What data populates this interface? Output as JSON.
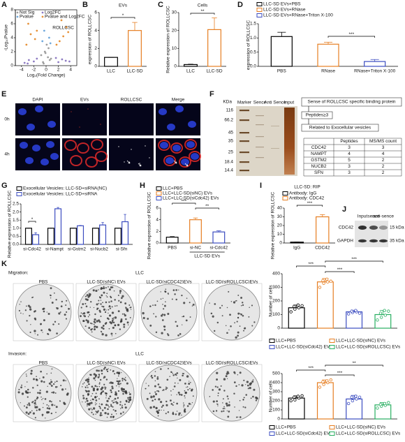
{
  "chart_data": [
    {
      "type": "scatter",
      "label": "A",
      "xlabel": "Log₂(Fold Change)",
      "ylabel": "-Log₁₀Pvalue",
      "annotation": "ROLLCSC",
      "xlim": [
        -5,
        5
      ],
      "xticks": [
        -4,
        -2,
        0,
        2,
        4
      ],
      "ylim": [
        0,
        8
      ],
      "yticks": [
        0,
        2,
        4,
        6,
        8
      ],
      "series": [
        {
          "name": "Not Sig",
          "color": "#9e9e9e",
          "x": [
            -0.5,
            0.3,
            -0.2,
            0.6,
            -0.8,
            0.1,
            0.4,
            -0.4,
            0.8,
            -0.1
          ],
          "y": [
            0.5,
            1.2,
            2.0,
            0.8,
            1.5,
            3.0,
            2.5,
            0.3,
            1.0,
            1.8
          ]
        },
        {
          "name": "Log2FC",
          "color": "#8e7cc3",
          "x": [
            -3.5,
            -2.8,
            -2.0,
            -1.5,
            2.0,
            2.6,
            3.2,
            1.6,
            -3.0,
            3.8
          ],
          "y": [
            0.4,
            0.8,
            0.6,
            1.0,
            0.5,
            0.9,
            0.7,
            1.1,
            0.3,
            0.6
          ]
        },
        {
          "name": "Pvalue",
          "color": "#6fa8dc",
          "x": [
            -0.6,
            0.5,
            -0.3,
            0.7
          ],
          "y": [
            3.5,
            4.0,
            5.0,
            3.2
          ]
        },
        {
          "name": "Pvalue and Log2FC",
          "color": "#e69138",
          "x": [
            -3.2,
            -2.5,
            -1.8,
            -2.9,
            -1.5,
            2.2,
            2.8,
            3.3,
            1.7,
            2.5,
            3.6
          ],
          "y": [
            3.0,
            4.5,
            3.8,
            6.0,
            5.0,
            3.5,
            4.2,
            5.5,
            3.0,
            6.5,
            4.8
          ]
        }
      ]
    },
    {
      "type": "bar",
      "label": "B",
      "title": "EVs",
      "ylabel": "expression of ROLLCSC",
      "categories": [
        "LLC",
        "LLC-SD"
      ],
      "values": [
        1,
        4
      ],
      "errors": [
        0,
        0.9
      ],
      "colors": [
        "#000000",
        "#e67e22"
      ],
      "ylim": [
        0,
        6
      ],
      "yticks": [
        0,
        2,
        4,
        6
      ],
      "annotations": [
        "*"
      ]
    },
    {
      "type": "bar",
      "label": "C",
      "title": "Cells",
      "ylabel": "Relative expression of ROLLCSC",
      "categories": [
        "LLC",
        "LLC-SD"
      ],
      "values": [
        1,
        20.5
      ],
      "errors": [
        0.2,
        6.5
      ],
      "colors": [
        "#000000",
        "#e67e22"
      ],
      "ylim": [
        0,
        30
      ],
      "yticks": [
        0,
        10,
        20,
        30
      ],
      "annotations": [
        "**"
      ]
    },
    {
      "type": "bar",
      "label": "D",
      "ylabel": "expression of ROLLCSC",
      "categories": [
        "PBS",
        "RNase",
        "RNase+Triton X-100"
      ],
      "values": [
        1.05,
        0.78,
        0.17
      ],
      "errors": [
        0.15,
        0.07,
        0.07
      ],
      "colors": [
        "#000000",
        "#e67e22",
        "#3b4cc0"
      ],
      "legend": [
        "LLC-SD EVs+PBS",
        "LLC-SD EVs+RNase",
        "LLC-SD EVs+RNase+Triton X-100"
      ],
      "ylim": [
        0,
        1.5
      ],
      "yticks": [
        {
          "value": 0,
          "label": "0.0"
        },
        0.5,
        {
          "value": 1,
          "label": "1.0"
        },
        1.5
      ],
      "annotations": [
        "***"
      ]
    },
    {
      "type": "groupedbar",
      "label": "G",
      "ylabel": "Relative expression of ROLLCSC",
      "categories": [
        "si-Cdc42",
        "si-Nampt",
        "si-Gstm2",
        "si-Nucb2",
        "si-Sfn"
      ],
      "series": [
        {
          "name": "Exocellular Vesicles: LLC-SD+siRNA(NC)",
          "color": "#000000",
          "values": [
            1,
            1,
            1,
            1,
            1
          ],
          "errors": [
            0,
            0,
            0,
            0,
            0
          ]
        },
        {
          "name": "Exocellular Vesicles: LLC-SD+siRNA",
          "color": "#3b4cc0",
          "values": [
            0.6,
            2.2,
            1.15,
            1.2,
            1.4
          ],
          "errors": [
            0.12,
            0.08,
            0.02,
            0.15,
            0.45
          ]
        }
      ],
      "ylim": [
        0,
        2.5
      ],
      "yticks": [
        {
          "value": 0,
          "label": "0.0"
        },
        0.5,
        {
          "value": 1,
          "label": "1.0"
        },
        1.5,
        {
          "value": 2,
          "label": "2.0"
        },
        2.5
      ],
      "annotations": [
        "*"
      ]
    },
    {
      "type": "bar",
      "label": "H",
      "ylabel": "Relative expression of ROLLCSC",
      "group_label": "LLC-SD EVs",
      "categories": [
        "PBS",
        "si-NC",
        "si-Cdc42"
      ],
      "values": [
        1,
        4,
        1.9
      ],
      "errors": [
        0.1,
        0.3,
        0.2
      ],
      "colors": [
        "#000000",
        "#e67e22",
        "#3b4cc0"
      ],
      "legend": [
        "LLC+PBS",
        "LLC+LLC-SD(siNC) EVs",
        "LLC+LLC-SD(siCdc42) EVs"
      ],
      "ylim": [
        0,
        6
      ],
      "yticks": [
        0,
        2,
        4,
        6
      ],
      "annotations": [
        "***",
        "**"
      ]
    },
    {
      "type": "bar",
      "label": "I",
      "title": "LLC-SD: RIP",
      "ylabel": "Relative expression of ROLLCSC",
      "categories": [
        "IgG",
        "CDC42"
      ],
      "values": [
        1,
        30
      ],
      "errors": [
        0.1,
        2.5
      ],
      "colors": [
        "#000000",
        "#e67e22"
      ],
      "legend": [
        "Antibody: IgG",
        "Antibody: CDC42"
      ],
      "ylim": [
        0,
        40
      ],
      "yticks": [
        0,
        10,
        20,
        30,
        40
      ],
      "annotations": [
        "***"
      ]
    },
    {
      "type": "dotbar",
      "ylabel": "Number of cells",
      "values": [
        150,
        340,
        120,
        100
      ],
      "errors": [
        20,
        25,
        12,
        30
      ],
      "points": [
        [
          120,
          140,
          150,
          160,
          170,
          165
        ],
        [
          300,
          330,
          340,
          350,
          360,
          345
        ],
        [
          105,
          115,
          120,
          125,
          130,
          110
        ],
        [
          60,
          80,
          95,
          110,
          130,
          125
        ]
      ],
      "colors": [
        "#000000",
        "#e67e22",
        "#3b4cc0",
        "#27ae60"
      ],
      "legend": [
        "LLC+PBS",
        "LLC+LLC-SD(siNC) EVs",
        "LLC+LLC-SD(siCdc42) EVs",
        "LLC+LLC-SD(siROLLCSC) EVs"
      ],
      "ylim": [
        0,
        400
      ],
      "yticks": [
        0,
        100,
        200,
        300,
        400
      ],
      "annotations": [
        "***",
        "***",
        "***"
      ]
    },
    {
      "type": "dotbar",
      "ylabel": "Number of cells",
      "values": [
        230,
        400,
        220,
        155
      ],
      "errors": [
        25,
        30,
        40,
        25
      ],
      "points": [
        [
          200,
          210,
          230,
          240,
          250,
          255
        ],
        [
          350,
          380,
          400,
          410,
          420,
          430
        ],
        [
          170,
          200,
          220,
          240,
          250,
          240
        ],
        [
          120,
          140,
          150,
          160,
          170,
          180
        ]
      ],
      "colors": [
        "#000000",
        "#e67e22",
        "#3b4cc0",
        "#27ae60"
      ],
      "legend": [
        "LLC+PBS",
        "LLC+LLC-SD(siNC) EVs",
        "LLC+LLC-SD(siCdc42) EVs",
        "LLC+LLC-SD(siROLLCSC) EVs"
      ],
      "ylim": [
        0,
        500
      ],
      "yticks": [
        0,
        100,
        200,
        300,
        400,
        500
      ],
      "annotations": [
        "***",
        "***",
        "**"
      ]
    }
  ],
  "microscopy": {
    "label": "E",
    "columns": [
      "DAPI",
      "EVs",
      "ROLLCSC",
      "Merge"
    ],
    "rows": [
      "0h",
      "4h"
    ]
  },
  "gel": {
    "label": "F",
    "unit": "KDa",
    "markers": [
      116,
      66.2,
      45,
      35,
      25,
      18.4,
      14.4
    ],
    "lanes": [
      "Marker",
      "Sence",
      "Anti Sence",
      "Input"
    ]
  },
  "screen": {
    "steps": [
      "Sense of ROLLCSC specific binding protein",
      "Peptides≥3",
      "Related to Exocellular vesicles"
    ],
    "table": {
      "header": [
        "Peptides",
        "MS/MS count"
      ],
      "rows": [
        [
          "CDC42",
          "3",
          "3"
        ],
        [
          "NAMPT",
          "4",
          "4"
        ],
        [
          "GSTM2",
          "5",
          "2"
        ],
        [
          "NUCB2",
          "3",
          "2"
        ],
        [
          "SFN",
          "3",
          "2"
        ]
      ]
    }
  },
  "western": {
    "label": "J",
    "lanes": [
      "Input",
      "sence",
      "anti-sence"
    ],
    "rows": [
      {
        "name": "CDC42",
        "size": "15 kDa"
      },
      {
        "name": "GAPDH",
        "size": "35 kDa"
      }
    ]
  },
  "transwell": {
    "label": "K",
    "sections": [
      {
        "title": "Migration:",
        "cell": "LLC",
        "columns": [
          "PBS",
          "LLC-SD(siNC) EVs",
          "LLC-SD(siCDC42)EVs",
          "LLC-SD(siROLLCSC)EVs"
        ]
      },
      {
        "title": "Invasion:",
        "cell": "LLC",
        "columns": [
          "PBS",
          "LLC-SD(siNC) EVs",
          "LLC-SD(siCDC42)EVs",
          "LLC-SD(siROLLCSC)EVs"
        ]
      }
    ]
  }
}
